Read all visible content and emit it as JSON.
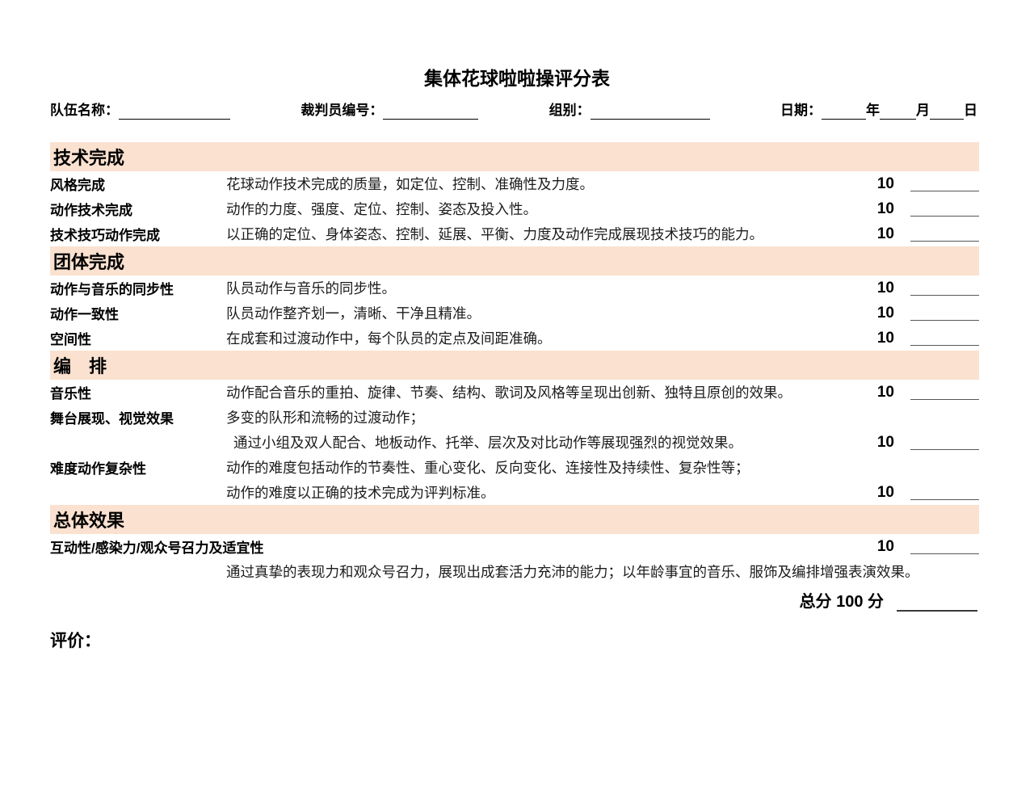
{
  "page": {
    "title": "集体花球啦啦操评分表",
    "total_label": "总分 100 分",
    "evaluation_label": "评价：",
    "band_color": "#FAE1D0"
  },
  "header": {
    "team_label": "队伍名称：",
    "judge_label": "裁判员编号：",
    "group_label": "组别：",
    "date_label": "日期：",
    "year_label": "年",
    "month_label": "月",
    "day_label": "日"
  },
  "sections": [
    {
      "title": "技术完成",
      "rows": [
        {
          "label": "风格完成",
          "desc": "花球动作技术完成的质量，如定位、控制、准确性及力度。",
          "score": "10"
        },
        {
          "label": "动作技术完成",
          "desc": "动作的力度、强度、定位、控制、姿态及投入性。",
          "score": "10"
        },
        {
          "label": "技术技巧动作完成",
          "desc": "以正确的定位、身体姿态、控制、延展、平衡、力度及动作完成展现技术技巧的能力。",
          "score": "10"
        }
      ]
    },
    {
      "title": "团体完成",
      "rows": [
        {
          "label": "动作与音乐的同步性",
          "desc": "队员动作与音乐的同步性。",
          "score": "10"
        },
        {
          "label": "动作一致性",
          "desc": "队员动作整齐划一，清晰、干净且精准。",
          "score": "10"
        },
        {
          "label": "空间性",
          "desc": "在成套和过渡动作中，每个队员的定点及间距准确。",
          "score": "10"
        }
      ]
    },
    {
      "title": "编　排",
      "rows": [
        {
          "label": "音乐性",
          "desc": "动作配合音乐的重拍、旋律、节奏、结构、歌词及风格等呈现出创新、独特且原创的效果。",
          "score": "10"
        },
        {
          "label": "舞台展现、视觉效果",
          "desc": "多变的队形和流畅的过渡动作；",
          "desc2": "通过小组及双人配合、地板动作、托举、层次及对比动作等展现强烈的视觉效果。",
          "score": "10"
        },
        {
          "label": "难度动作复杂性",
          "desc": "动作的难度包括动作的节奏性、重心变化、反向变化、连接性及持续性、复杂性等；",
          "desc2": "动作的难度以正确的技术完成为评判标准。",
          "score": "10"
        }
      ]
    },
    {
      "title": "总体效果",
      "rows": [
        {
          "label": "互动性/感染力/观众号召力及适宜性",
          "desc_below": "通过真挚的表现力和观众号召力，展现出成套活力充沛的能力；以年龄事宜的音乐、服饰及编排增强表演效果。",
          "score": "10"
        }
      ]
    }
  ]
}
